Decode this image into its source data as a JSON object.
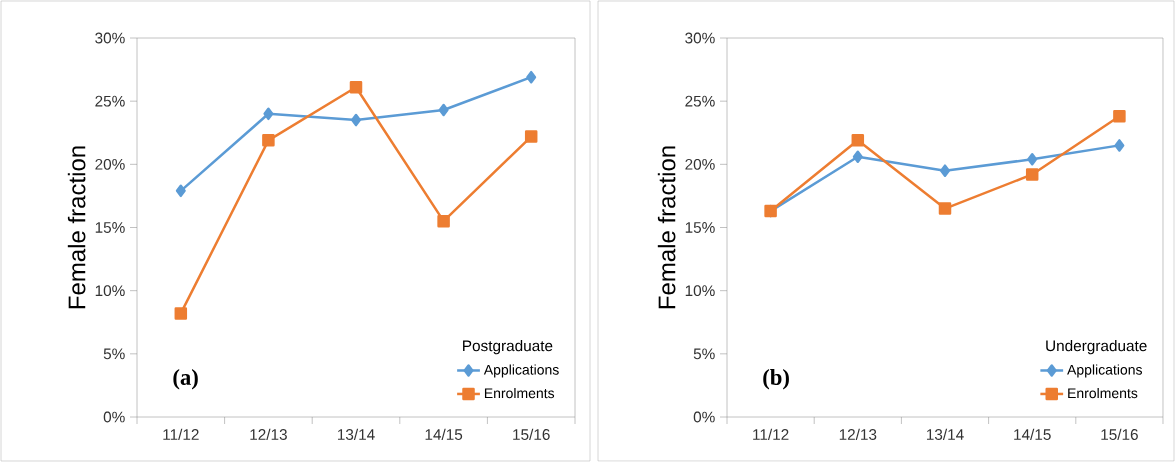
{
  "chart_data": [
    {
      "type": "line",
      "ylabel": "Female fraction",
      "legend_title": "Postgraduate",
      "annotations": [
        "(a)"
      ],
      "categories": [
        "11/12",
        "12/13",
        "13/14",
        "14/15",
        "15/16"
      ],
      "series": [
        {
          "name": "Applications",
          "color": "#5b9bd5",
          "marker": "diamond",
          "values": [
            17.9,
            24.0,
            23.5,
            24.3,
            26.9
          ]
        },
        {
          "name": "Enrolments",
          "color": "#ed7d31",
          "marker": "square",
          "values": [
            8.2,
            21.9,
            26.1,
            15.5,
            22.2
          ]
        }
      ],
      "ylim": [
        0,
        30
      ],
      "yticks": [
        {
          "value": 0,
          "label": "0%"
        },
        {
          "value": 5,
          "label": "5%"
        },
        {
          "value": 10,
          "label": "10%"
        },
        {
          "value": 15,
          "label": "15%"
        },
        {
          "value": 20,
          "label": "20%"
        },
        {
          "value": 25,
          "label": "25%"
        },
        {
          "value": 30,
          "label": "30%"
        }
      ],
      "grid": false,
      "legend": "bottom right",
      "line_style": "solid"
    },
    {
      "type": "line",
      "ylabel": "Female fraction",
      "legend_title": "Undergraduate",
      "annotations": [
        "(b)"
      ],
      "categories": [
        "11/12",
        "12/13",
        "13/14",
        "14/15",
        "15/16"
      ],
      "series": [
        {
          "name": "Applications",
          "color": "#5b9bd5",
          "marker": "diamond",
          "values": [
            16.3,
            20.6,
            19.5,
            20.4,
            21.5
          ]
        },
        {
          "name": "Enrolments",
          "color": "#ed7d31",
          "marker": "square",
          "values": [
            16.3,
            21.9,
            16.5,
            19.2,
            23.8
          ]
        }
      ],
      "ylim": [
        0,
        30
      ],
      "yticks": [
        {
          "value": 0,
          "label": "0%"
        },
        {
          "value": 5,
          "label": "5%"
        },
        {
          "value": 10,
          "label": "10%"
        },
        {
          "value": 15,
          "label": "15%"
        },
        {
          "value": 20,
          "label": "20%"
        },
        {
          "value": 25,
          "label": "25%"
        },
        {
          "value": 30,
          "label": "30%"
        }
      ],
      "grid": false,
      "legend": "bottom right",
      "line_style": "solid"
    }
  ]
}
